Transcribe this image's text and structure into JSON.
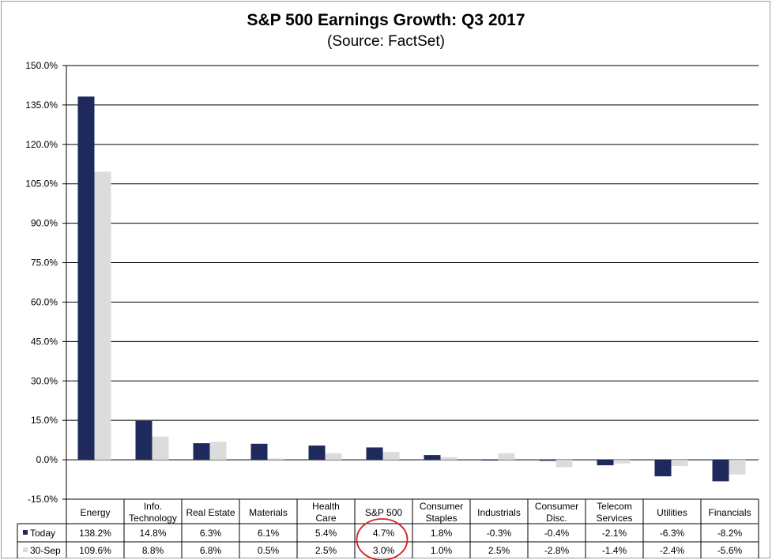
{
  "chart_data": {
    "type": "bar",
    "title": "S&P 500 Earnings Growth: Q3 2017",
    "subtitle": "(Source: FactSet)",
    "categories": [
      [
        "Energy"
      ],
      [
        "Info.",
        "Technology"
      ],
      [
        "Real Estate"
      ],
      [
        "Materials"
      ],
      [
        "Health",
        "Care"
      ],
      [
        "S&P 500"
      ],
      [
        "Consumer",
        "Staples"
      ],
      [
        "Industrials"
      ],
      [
        "Consumer",
        "Disc."
      ],
      [
        "Telecom",
        "Services"
      ],
      [
        "Utilities"
      ],
      [
        "Financials"
      ]
    ],
    "series": [
      {
        "name": "Today",
        "color": "#1f2a5c",
        "values": [
          138.2,
          14.8,
          6.3,
          6.1,
          5.4,
          4.7,
          1.8,
          -0.3,
          -0.4,
          -2.1,
          -6.3,
          -8.2
        ],
        "labels": [
          "138.2%",
          "14.8%",
          "6.3%",
          "6.1%",
          "5.4%",
          "4.7%",
          "1.8%",
          "-0.3%",
          "-0.4%",
          "-2.1%",
          "-6.3%",
          "-8.2%"
        ]
      },
      {
        "name": "30-Sep",
        "color": "#dcdcdc",
        "values": [
          109.6,
          8.8,
          6.8,
          0.5,
          2.5,
          3.0,
          1.0,
          2.5,
          -2.8,
          -1.4,
          -2.4,
          -5.6
        ],
        "labels": [
          "109.6%",
          "8.8%",
          "6.8%",
          "0.5%",
          "2.5%",
          "3.0%",
          "1.0%",
          "2.5%",
          "-2.8%",
          "-1.4%",
          "-2.4%",
          "-5.6%"
        ]
      }
    ],
    "ylim": [
      -15,
      150
    ],
    "yticks": [
      -15,
      0,
      15,
      30,
      45,
      60,
      75,
      90,
      105,
      120,
      135,
      150
    ],
    "ytick_labels": [
      "-15.0%",
      "0.0%",
      "15.0%",
      "30.0%",
      "45.0%",
      "60.0%",
      "75.0%",
      "90.0%",
      "105.0%",
      "120.0%",
      "135.0%",
      "150.0%"
    ],
    "grid": true,
    "legend": "data-table",
    "annotation": {
      "type": "circle",
      "target_category": "S&P 500",
      "color": "#d42020"
    }
  }
}
